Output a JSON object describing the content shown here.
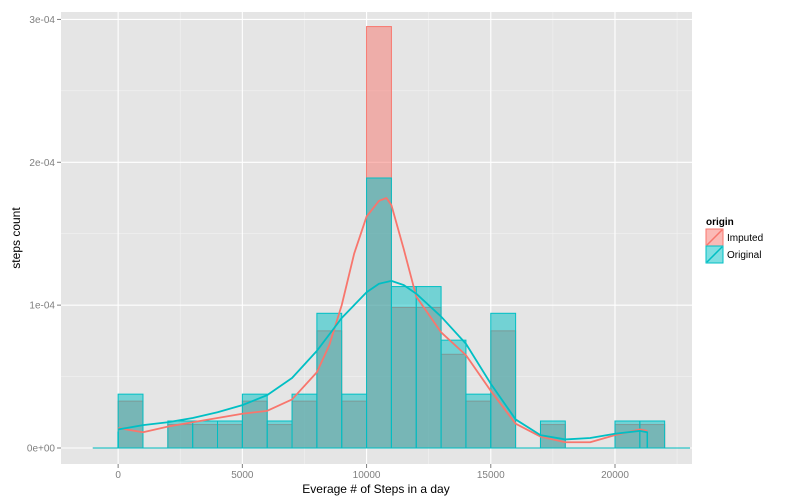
{
  "chart_data": {
    "type": "histogram",
    "xlabel": "Everage # of Steps in a day",
    "ylabel": "steps count",
    "xlim": [
      -2300,
      23100
    ],
    "ylim": [
      -1.12e-05,
      0.0003052
    ],
    "x_ticks": [
      {
        "value": 0,
        "label": "0"
      },
      {
        "value": 5000,
        "label": "5000"
      },
      {
        "value": 10000,
        "label": "10000"
      },
      {
        "value": 15000,
        "label": "15000"
      },
      {
        "value": 20000,
        "label": "20000"
      }
    ],
    "y_ticks": [
      {
        "value": 0,
        "label": "0e+00"
      },
      {
        "value": 0.0001,
        "label": "1e-04"
      },
      {
        "value": 0.0002,
        "label": "2e-04"
      },
      {
        "value": 0.0003,
        "label": "3e-04"
      }
    ],
    "grid": true,
    "background": "#e5e5e5",
    "bin_width": 1000,
    "bin_starts": [
      -1000,
      0,
      1000,
      2000,
      3000,
      4000,
      5000,
      6000,
      7000,
      8000,
      9000,
      10000,
      11000,
      12000,
      13000,
      14000,
      15000,
      16000,
      17000,
      18000,
      19000,
      20000,
      21000,
      22000
    ],
    "legend": {
      "title": "origin",
      "position": "right"
    },
    "series": [
      {
        "name": "Imputed",
        "color": "#f8766d",
        "fill": "#f8766d",
        "values": [
          0,
          3.28e-05,
          0,
          1.64e-05,
          1.64e-05,
          1.64e-05,
          3.28e-05,
          1.64e-05,
          3.28e-05,
          8.2e-05,
          3.28e-05,
          0.000295,
          9.84e-05,
          9.84e-05,
          6.56e-05,
          3.28e-05,
          8.2e-05,
          0,
          1.64e-05,
          0,
          0,
          1.64e-05,
          1.64e-05,
          0
        ],
        "density_x": [
          0,
          1000,
          2000,
          3000,
          4000,
          5000,
          6000,
          7000,
          8000,
          8500,
          9000,
          9500,
          10000,
          10500,
          10800,
          11000,
          11500,
          12000,
          13000,
          14000,
          15000,
          16000,
          17000,
          18000,
          19000,
          20000,
          21000,
          21300
        ],
        "density_y": [
          1.4e-05,
          1.1e-05,
          1.5e-05,
          1.8e-05,
          2.1e-05,
          2.4e-05,
          2.6e-05,
          3.4e-05,
          5.3e-05,
          7.2e-05,
          0.0001,
          0.000136,
          0.000162,
          0.000173,
          0.000175,
          0.00017,
          0.000139,
          0.000106,
          8.1e-05,
          6.5e-05,
          4e-05,
          1.7e-05,
          8e-06,
          4e-06,
          4e-06,
          9e-06,
          1.3e-05,
          1.2e-05
        ]
      },
      {
        "name": "Original",
        "color": "#00bfc4",
        "fill": "#00bfc4",
        "values": [
          0,
          3.77e-05,
          0,
          1.89e-05,
          1.89e-05,
          1.89e-05,
          3.77e-05,
          1.89e-05,
          3.77e-05,
          9.43e-05,
          3.77e-05,
          0.000189,
          0.000113,
          0.000113,
          7.55e-05,
          3.77e-05,
          9.43e-05,
          0,
          1.89e-05,
          0,
          0,
          1.89e-05,
          1.89e-05,
          0
        ],
        "density_x": [
          0,
          1000,
          2000,
          3000,
          4000,
          5000,
          6000,
          7000,
          8000,
          9000,
          10000,
          10500,
          11000,
          11500,
          12000,
          12500,
          13000,
          14000,
          15000,
          16000,
          17000,
          18000,
          19000,
          20000,
          21000,
          21300
        ],
        "density_y": [
          1.3e-05,
          1.6e-05,
          1.8e-05,
          2.1e-05,
          2.5e-05,
          3e-05,
          3.7e-05,
          4.9e-05,
          6.8e-05,
          9.1e-05,
          0.000109,
          0.000115,
          0.000117,
          0.000114,
          0.000108,
          0.0001,
          9.2e-05,
          7.3e-05,
          4.5e-05,
          2e-05,
          9e-06,
          6e-06,
          7e-06,
          1e-05,
          1.2e-05,
          1.1e-05
        ],
        "box": {
          "xmin": 0,
          "xmax": 21300,
          "y": 1.15e-05
        }
      }
    ]
  }
}
